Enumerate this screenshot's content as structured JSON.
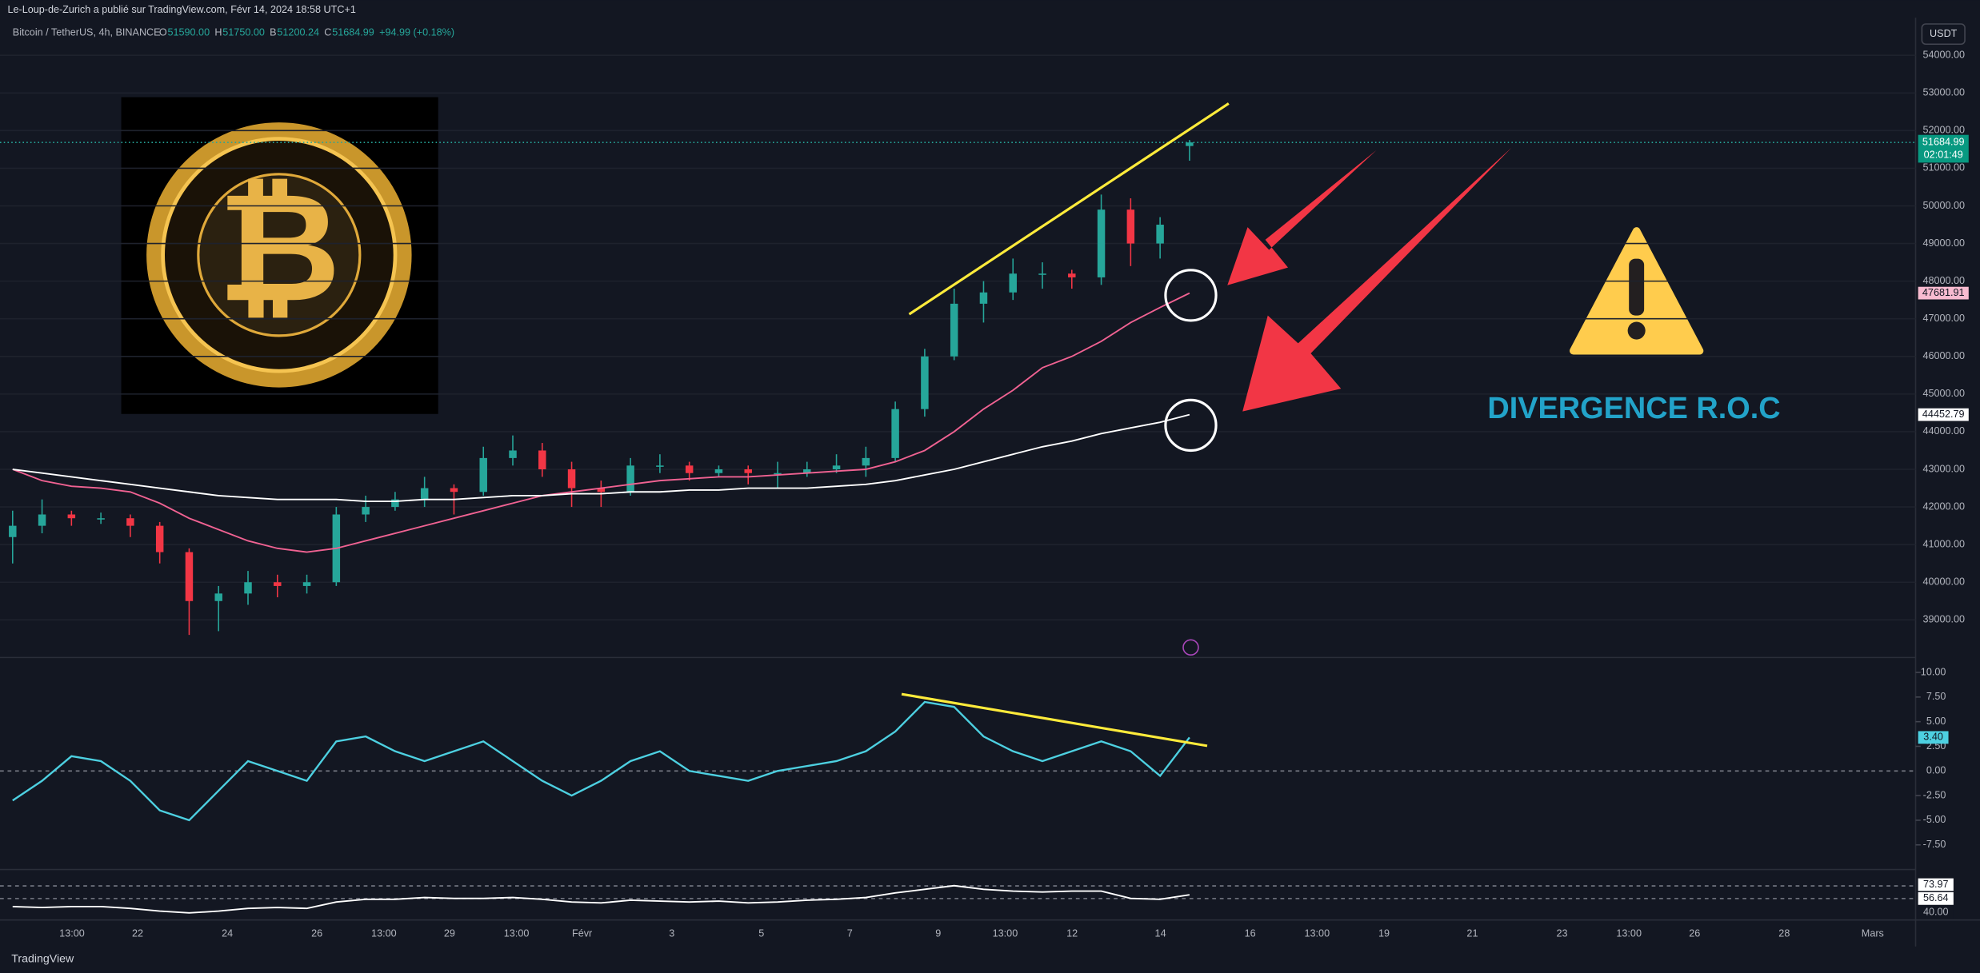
{
  "header": {
    "published": "Le-Loup-de-Zurich a publié sur TradingView.com, Févr 14, 2024 18:58 UTC+1",
    "symbol": "Bitcoin / TetherUS, 4h, BINANCE",
    "ohlc": [
      {
        "key": "O",
        "value": "51590.00"
      },
      {
        "key": "H",
        "value": "51750.00"
      },
      {
        "key": "B",
        "value": "51200.24"
      },
      {
        "key": "C",
        "value": "51684.99"
      }
    ],
    "change": "+94.99 (+0.18%)",
    "currency": "USDT"
  },
  "annotation": "DIVERGENCE R.O.C",
  "countdown": "02:01:49",
  "footer": "TradingView",
  "chart_data": {
    "type": "candlestick",
    "ylim": [
      38000,
      55000
    ],
    "yticks": [
      {
        "value": 54000,
        "label": "54000.00"
      },
      {
        "value": 53000,
        "label": "53000.00"
      },
      {
        "value": 52000,
        "label": "52000.00"
      },
      {
        "value": 51000,
        "label": "51000.00"
      },
      {
        "value": 50000,
        "label": "50000.00"
      },
      {
        "value": 49000,
        "label": "49000.00"
      },
      {
        "value": 48000,
        "label": "48000.00"
      },
      {
        "value": 47000,
        "label": "47000.00"
      },
      {
        "value": 46000,
        "label": "46000.00"
      },
      {
        "value": 45000,
        "label": "45000.00"
      },
      {
        "value": 44000,
        "label": "44000.00"
      },
      {
        "value": 43000,
        "label": "43000.00"
      },
      {
        "value": 42000,
        "label": "42000.00"
      },
      {
        "value": 41000,
        "label": "41000.00"
      },
      {
        "value": 40000,
        "label": "40000.00"
      },
      {
        "value": 39000,
        "label": "39000.00"
      }
    ],
    "up_color": "#26a69a",
    "down_color": "#f23645",
    "candles": [
      [
        41200,
        41900,
        40500,
        41500
      ],
      [
        41500,
        42200,
        41300,
        41800
      ],
      [
        41800,
        41900,
        41500,
        41700
      ],
      [
        41700,
        41850,
        41550,
        41700
      ],
      [
        41700,
        41800,
        41200,
        41500
      ],
      [
        41500,
        41600,
        40500,
        40800
      ],
      [
        40800,
        40900,
        38600,
        39500
      ],
      [
        39500,
        39900,
        38700,
        39700
      ],
      [
        39700,
        40300,
        39400,
        40000
      ],
      [
        40000,
        40200,
        39600,
        39900
      ],
      [
        39900,
        40200,
        39700,
        40000
      ],
      [
        40000,
        42000,
        39900,
        41800
      ],
      [
        41800,
        42300,
        41600,
        42000
      ],
      [
        42000,
        42400,
        41900,
        42200
      ],
      [
        42200,
        42800,
        42000,
        42500
      ],
      [
        42500,
        42600,
        41800,
        42400
      ],
      [
        42400,
        43600,
        42300,
        43300
      ],
      [
        43300,
        43900,
        43100,
        43500
      ],
      [
        43500,
        43700,
        42800,
        43000
      ],
      [
        43000,
        43200,
        42000,
        42500
      ],
      [
        42500,
        42700,
        42000,
        42400
      ],
      [
        42400,
        43300,
        42300,
        43100
      ],
      [
        43100,
        43400,
        42900,
        43100
      ],
      [
        43100,
        43200,
        42700,
        42900
      ],
      [
        42900,
        43100,
        42800,
        43000
      ],
      [
        43000,
        43100,
        42600,
        42900
      ],
      [
        42900,
        43200,
        42500,
        42900
      ],
      [
        42900,
        43200,
        42800,
        43000
      ],
      [
        43000,
        43400,
        42900,
        43100
      ],
      [
        43100,
        43600,
        42800,
        43300
      ],
      [
        43300,
        44800,
        43200,
        44600
      ],
      [
        44600,
        46200,
        44400,
        46000
      ],
      [
        46000,
        47800,
        45900,
        47400
      ],
      [
        47400,
        48000,
        46900,
        47700
      ],
      [
        47700,
        48600,
        47500,
        48200
      ],
      [
        48200,
        48500,
        47800,
        48200
      ],
      [
        48200,
        48300,
        47800,
        48100
      ],
      [
        48100,
        50300,
        47900,
        49900
      ],
      [
        49900,
        50200,
        48400,
        49000
      ],
      [
        49000,
        49700,
        48600,
        49500
      ],
      [
        51590,
        51750,
        51200,
        51684.99
      ]
    ],
    "series": [
      {
        "color": "#f06292",
        "values": [
          43000,
          42700,
          42550,
          42500,
          42400,
          42100,
          41700,
          41400,
          41100,
          40900,
          40800,
          40900,
          41100,
          41300,
          41500,
          41700,
          41900,
          42100,
          42300,
          42400,
          42500,
          42600,
          42700,
          42750,
          42800,
          42800,
          42850,
          42900,
          42950,
          43000,
          43200,
          43500,
          44000,
          44600,
          45100,
          45700,
          46000,
          46400,
          46900,
          47300,
          47681.91
        ]
      },
      {
        "color": "#ffffff",
        "values": [
          43000,
          42900,
          42800,
          42700,
          42600,
          42500,
          42400,
          42300,
          42250,
          42200,
          42200,
          42200,
          42150,
          42150,
          42200,
          42200,
          42250,
          42300,
          42300,
          42350,
          42350,
          42400,
          42400,
          42450,
          42450,
          42500,
          42500,
          42500,
          42550,
          42600,
          42700,
          42850,
          43000,
          43200,
          43400,
          43600,
          43750,
          43950,
          44100,
          44250,
          44452.79
        ]
      }
    ],
    "time_labels": [
      "13:00",
      "22",
      "24",
      "26",
      "13:00",
      "29",
      "13:00",
      "Févr",
      "3",
      "5",
      "7",
      "9",
      "13:00",
      "12",
      "14",
      "16",
      "13:00",
      "19",
      "21",
      "23",
      "13:00",
      "26",
      "28",
      "Mars"
    ],
    "roc": {
      "color": "#4dd0e1",
      "ylim": [
        -10,
        11
      ],
      "yticks": [
        {
          "value": 10,
          "label": "10.00"
        },
        {
          "value": 7.5,
          "label": "7.50"
        },
        {
          "value": 5,
          "label": "5.00"
        },
        {
          "value": 2.5,
          "label": "2.50"
        },
        {
          "value": 0,
          "label": "0.00"
        },
        {
          "value": -2.5,
          "label": "-2.50"
        },
        {
          "value": -5,
          "label": "-5.00"
        },
        {
          "value": -7.5,
          "label": "-7.50"
        }
      ],
      "values": [
        -3,
        -1,
        1.5,
        1,
        -1,
        -4,
        -5,
        -2,
        1,
        0,
        -1,
        3,
        3.5,
        2,
        1,
        2,
        3,
        1,
        -1,
        -2.5,
        -1,
        1,
        2,
        0,
        -0.5,
        -1,
        0,
        0.5,
        1,
        2,
        4,
        7,
        6.5,
        3.5,
        2,
        1,
        2,
        3,
        2,
        -0.5,
        3.4
      ],
      "value_label": "3.40"
    },
    "rsi": {
      "color": "#ffffff",
      "ylim": [
        35,
        85
      ],
      "values": [
        47,
        46,
        47,
        47,
        45,
        42,
        40,
        42,
        45,
        46,
        45,
        52,
        55,
        55,
        57,
        56,
        56,
        57,
        55,
        52,
        51,
        54,
        53,
        52,
        53,
        51,
        52,
        54,
        55,
        57,
        62,
        66,
        70,
        66,
        64,
        63,
        64,
        64,
        56,
        55,
        60
      ],
      "readouts": [
        "73.97",
        "56.64",
        "40.00"
      ]
    }
  }
}
